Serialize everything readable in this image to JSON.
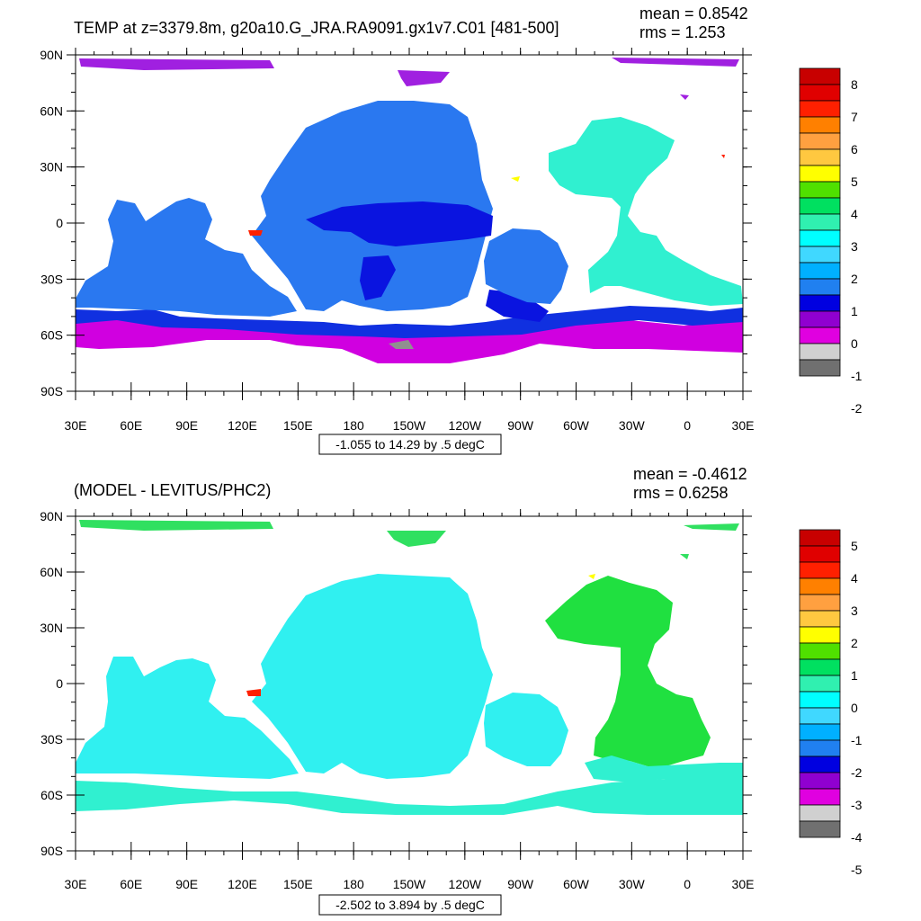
{
  "panels": [
    {
      "title": "TEMP at z=3379.8m, g20a10.G_JRA.RA9091.gx1v7.C01 [481-500]",
      "mean": "mean = 0.8542",
      "rms": "rms = 1.253",
      "range_label": "-1.055 to 14.29 by .5 degC",
      "colorbar": {
        "labels": [
          "8",
          "7",
          "6",
          "5",
          "4",
          "3",
          "2",
          "1",
          "0",
          "-1",
          "-2"
        ],
        "colors": [
          "#c80000",
          "#e00000",
          "#ff2000",
          "#ff8000",
          "#ffa040",
          "#ffc840",
          "#ffff00",
          "#50e000",
          "#00e060",
          "#30f0b0",
          "#00ffff",
          "#40d8ff",
          "#00b0ff",
          "#2080f0",
          "#0000e0",
          "#9000d0",
          "#e000e0",
          "#d0d0d0",
          "#707070"
        ]
      },
      "regions": {
        "polar_n": "#a020e0",
        "pacific": "#2a78f0",
        "deep_pacific": "#0a14e0",
        "atlantic": "#30f0d0",
        "southern_band": "#1030e0",
        "southern": "#d000e0",
        "accent": "#ff2000"
      }
    },
    {
      "title": "(MODEL - LEVITUS/PHC2)",
      "mean": "mean = -0.4612",
      "rms": "rms = 0.6258",
      "range_label": "-2.502 to 3.894 by .5 degC",
      "colorbar": {
        "labels": [
          "5",
          "4",
          "3",
          "2",
          "1",
          "0",
          "-1",
          "-2",
          "-3",
          "-4",
          "-5"
        ],
        "colors": [
          "#c80000",
          "#e00000",
          "#ff2000",
          "#ff8000",
          "#ffa040",
          "#ffc840",
          "#ffff00",
          "#50e000",
          "#00e060",
          "#30f0b0",
          "#00ffff",
          "#40d8ff",
          "#00b0ff",
          "#2080f0",
          "#0000e0",
          "#9000d0",
          "#e000e0",
          "#d0d0d0",
          "#707070"
        ]
      },
      "regions": {
        "polar_n": "#30e060",
        "pacific": "#30f0f0",
        "deep_pacific": "#30f0f0",
        "atlantic": "#20e040",
        "southern_band": "#30f0d0",
        "southern": "#30f0d0",
        "accent": "#ff2000"
      }
    }
  ],
  "lat_labels": [
    "90N",
    "60N",
    "30N",
    "0",
    "30S",
    "60S",
    "90S"
  ],
  "lon_labels": [
    "30E",
    "60E",
    "90E",
    "120E",
    "150E",
    "180",
    "150W",
    "120W",
    "90W",
    "60W",
    "30W",
    "0",
    "30E"
  ]
}
